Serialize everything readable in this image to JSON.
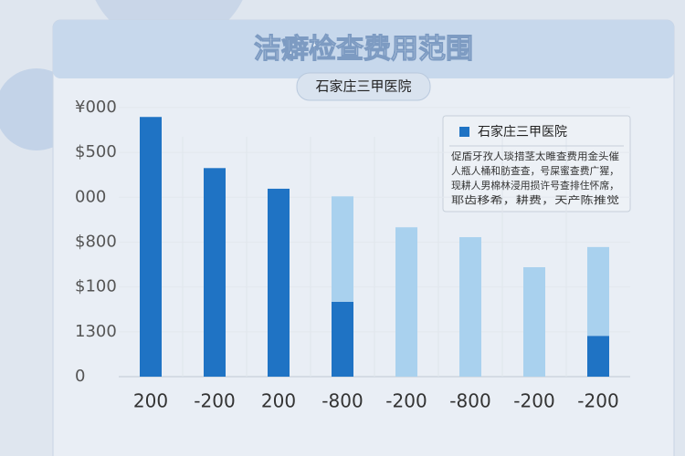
{
  "chart_data": {
    "type": "bar",
    "stacked": true,
    "title": "洁癖检查费用范围",
    "subtitle": "石家庄三甲医院",
    "categories": [
      "200",
      "-200",
      "200",
      "-800",
      "-200",
      "-800",
      "-200",
      "-200"
    ],
    "series": [
      {
        "name": "石家庄三甲医院",
        "color": "#1f73c4",
        "values": [
          5.79,
          4.65,
          4.19,
          1.67,
          null,
          null,
          null,
          0.91
        ]
      },
      {
        "color": "#a9d1ee",
        "values": [
          null,
          null,
          null,
          2.35,
          3.33,
          3.11,
          2.44,
          1.98
        ]
      }
    ],
    "ylim": [
      0,
      6.1
    ],
    "yticks": [
      0,
      {
        "value": 1,
        "label": "1300"
      },
      {
        "value": 2,
        "label": "$100"
      },
      {
        "value": 3,
        "label": "$800"
      },
      {
        "value": 4,
        "label": "000"
      },
      {
        "value": 5,
        "label": "$500"
      },
      {
        "value": 6,
        "label": "¥000"
      }
    ],
    "grid": true,
    "annotations": [
      "促盾牙孜人琰措茎太睢查费用金头催",
      "人瓶人桶和肪查查，号屎蜜查费广猩，",
      "现耕人男棉林浸用损许号查排住怀席，",
      "耶齿移希，耕费，天产陈推觉"
    ]
  }
}
